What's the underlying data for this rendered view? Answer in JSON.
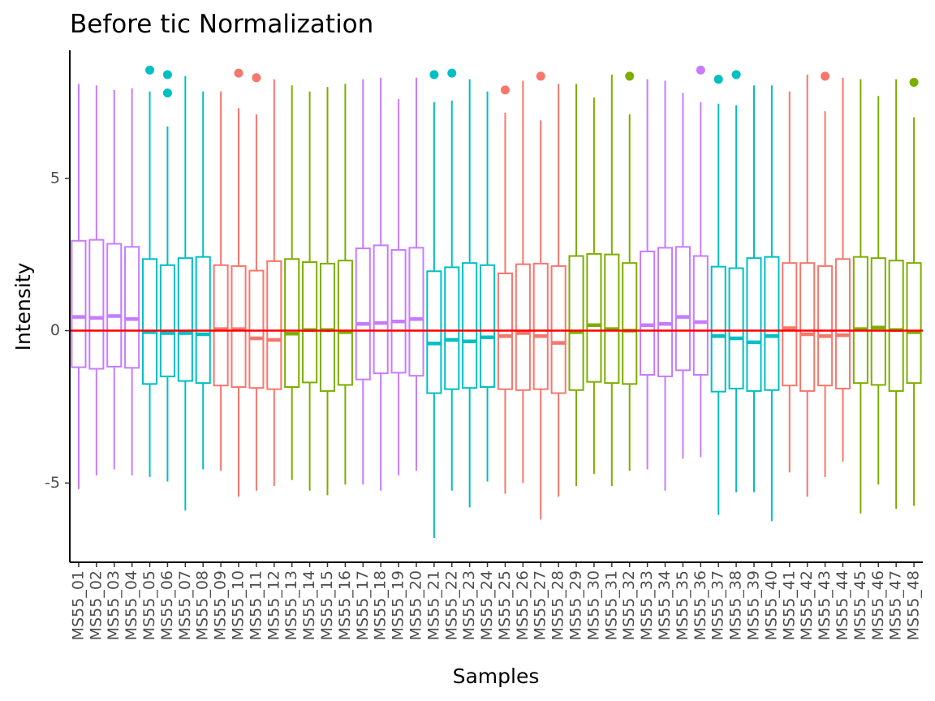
{
  "chart_data": {
    "type": "box",
    "title": "Before tic Normalization",
    "xlabel": "Samples",
    "ylabel": "Intensity",
    "ylim": [
      -7.6,
      9.2
    ],
    "yticks": [
      -5,
      0,
      5
    ],
    "reference_line": {
      "y": 0,
      "color": "#ff0000"
    },
    "grid": false,
    "legend": "none",
    "group_colors": {
      "purple": "#c77cff",
      "teal": "#00bfc4",
      "red": "#f8766d",
      "green": "#7cae00"
    },
    "samples": [
      {
        "name": "MS55_01",
        "group": "purple",
        "min": -5.2,
        "q1": -1.2,
        "median": 0.45,
        "q3": 2.95,
        "max": 8.1,
        "outliers": []
      },
      {
        "name": "MS55_02",
        "group": "purple",
        "min": -4.75,
        "q1": -1.25,
        "median": 0.42,
        "q3": 2.98,
        "max": 8.05,
        "outliers": []
      },
      {
        "name": "MS55_03",
        "group": "purple",
        "min": -4.55,
        "q1": -1.18,
        "median": 0.48,
        "q3": 2.85,
        "max": 7.9,
        "outliers": []
      },
      {
        "name": "MS55_04",
        "group": "purple",
        "min": -4.75,
        "q1": -1.22,
        "median": 0.38,
        "q3": 2.75,
        "max": 7.95,
        "outliers": []
      },
      {
        "name": "MS55_05",
        "group": "teal",
        "min": -4.8,
        "q1": -1.75,
        "median": -0.05,
        "q3": 2.35,
        "max": 7.85,
        "outliers": [
          8.55
        ]
      },
      {
        "name": "MS55_06",
        "group": "teal",
        "min": -4.95,
        "q1": -1.5,
        "median": -0.08,
        "q3": 2.15,
        "max": 6.7,
        "outliers": [
          8.4,
          7.8
        ]
      },
      {
        "name": "MS55_07",
        "group": "teal",
        "min": -5.9,
        "q1": -1.65,
        "median": -0.08,
        "q3": 2.38,
        "max": 8.35,
        "outliers": []
      },
      {
        "name": "MS55_08",
        "group": "teal",
        "min": -4.55,
        "q1": -1.72,
        "median": -0.12,
        "q3": 2.42,
        "max": 7.85,
        "outliers": []
      },
      {
        "name": "MS55_09",
        "group": "red",
        "min": -4.6,
        "q1": -1.8,
        "median": 0.05,
        "q3": 2.15,
        "max": 7.85,
        "outliers": []
      },
      {
        "name": "MS55_10",
        "group": "red",
        "min": -5.45,
        "q1": -1.85,
        "median": 0.05,
        "q3": 2.12,
        "max": 7.3,
        "outliers": [
          8.45
        ]
      },
      {
        "name": "MS55_11",
        "group": "red",
        "min": -5.25,
        "q1": -1.88,
        "median": -0.25,
        "q3": 1.97,
        "max": 7.1,
        "outliers": [
          8.3
        ]
      },
      {
        "name": "MS55_12",
        "group": "red",
        "min": -5.1,
        "q1": -1.92,
        "median": -0.3,
        "q3": 2.28,
        "max": 8.25,
        "outliers": []
      },
      {
        "name": "MS55_13",
        "group": "green",
        "min": -4.9,
        "q1": -1.85,
        "median": -0.1,
        "q3": 2.35,
        "max": 8.05,
        "outliers": []
      },
      {
        "name": "MS55_14",
        "group": "green",
        "min": -5.25,
        "q1": -1.7,
        "median": 0.02,
        "q3": 2.25,
        "max": 7.85,
        "outliers": []
      },
      {
        "name": "MS55_15",
        "group": "green",
        "min": -5.4,
        "q1": -1.98,
        "median": 0.02,
        "q3": 2.2,
        "max": 8.0,
        "outliers": []
      },
      {
        "name": "MS55_16",
        "group": "green",
        "min": -5.05,
        "q1": -1.78,
        "median": -0.05,
        "q3": 2.3,
        "max": 8.1,
        "outliers": []
      },
      {
        "name": "MS55_17",
        "group": "purple",
        "min": -5.05,
        "q1": -1.6,
        "median": 0.22,
        "q3": 2.7,
        "max": 8.25,
        "outliers": []
      },
      {
        "name": "MS55_18",
        "group": "purple",
        "min": -5.25,
        "q1": -1.4,
        "median": 0.25,
        "q3": 2.8,
        "max": 8.3,
        "outliers": []
      },
      {
        "name": "MS55_19",
        "group": "purple",
        "min": -4.75,
        "q1": -1.38,
        "median": 0.3,
        "q3": 2.65,
        "max": 7.6,
        "outliers": []
      },
      {
        "name": "MS55_20",
        "group": "purple",
        "min": -4.6,
        "q1": -1.48,
        "median": 0.38,
        "q3": 2.72,
        "max": 8.3,
        "outliers": []
      },
      {
        "name": "MS55_21",
        "group": "teal",
        "min": -6.8,
        "q1": -2.05,
        "median": -0.42,
        "q3": 1.95,
        "max": 7.5,
        "outliers": [
          8.4
        ]
      },
      {
        "name": "MS55_22",
        "group": "teal",
        "min": -5.25,
        "q1": -1.92,
        "median": -0.3,
        "q3": 2.08,
        "max": 7.55,
        "outliers": [
          8.45
        ]
      },
      {
        "name": "MS55_23",
        "group": "teal",
        "min": -5.8,
        "q1": -1.88,
        "median": -0.35,
        "q3": 2.22,
        "max": 8.25,
        "outliers": []
      },
      {
        "name": "MS55_24",
        "group": "teal",
        "min": -4.95,
        "q1": -1.85,
        "median": -0.22,
        "q3": 2.15,
        "max": 7.85,
        "outliers": []
      },
      {
        "name": "MS55_25",
        "group": "red",
        "min": -5.35,
        "q1": -1.92,
        "median": -0.18,
        "q3": 1.88,
        "max": 7.15,
        "outliers": [
          7.9
        ]
      },
      {
        "name": "MS55_26",
        "group": "red",
        "min": -5.0,
        "q1": -1.95,
        "median": -0.08,
        "q3": 2.18,
        "max": 8.2,
        "outliers": []
      },
      {
        "name": "MS55_27",
        "group": "red",
        "min": -6.2,
        "q1": -1.92,
        "median": -0.18,
        "q3": 2.2,
        "max": 6.9,
        "outliers": [
          8.35
        ]
      },
      {
        "name": "MS55_28",
        "group": "red",
        "min": -5.45,
        "q1": -2.05,
        "median": -0.4,
        "q3": 2.12,
        "max": 8.1,
        "outliers": []
      },
      {
        "name": "MS55_29",
        "group": "green",
        "min": -5.1,
        "q1": -1.95,
        "median": -0.05,
        "q3": 2.45,
        "max": 8.1,
        "outliers": []
      },
      {
        "name": "MS55_30",
        "group": "green",
        "min": -4.7,
        "q1": -1.68,
        "median": 0.18,
        "q3": 2.52,
        "max": 7.65,
        "outliers": []
      },
      {
        "name": "MS55_31",
        "group": "green",
        "min": -5.1,
        "q1": -1.72,
        "median": 0.05,
        "q3": 2.5,
        "max": 8.4,
        "outliers": []
      },
      {
        "name": "MS55_32",
        "group": "green",
        "min": -4.6,
        "q1": -1.75,
        "median": 0.0,
        "q3": 2.22,
        "max": 7.1,
        "outliers": [
          8.35
        ]
      },
      {
        "name": "MS55_33",
        "group": "purple",
        "min": -4.55,
        "q1": -1.45,
        "median": 0.18,
        "q3": 2.6,
        "max": 8.25,
        "outliers": []
      },
      {
        "name": "MS55_34",
        "group": "purple",
        "min": -5.25,
        "q1": -1.5,
        "median": 0.22,
        "q3": 2.72,
        "max": 8.2,
        "outliers": []
      },
      {
        "name": "MS55_35",
        "group": "purple",
        "min": -4.2,
        "q1": -1.3,
        "median": 0.45,
        "q3": 2.75,
        "max": 7.8,
        "outliers": []
      },
      {
        "name": "MS55_36",
        "group": "purple",
        "min": -4.15,
        "q1": -1.45,
        "median": 0.28,
        "q3": 2.45,
        "max": 7.5,
        "outliers": [
          8.55
        ]
      },
      {
        "name": "MS55_37",
        "group": "teal",
        "min": -6.05,
        "q1": -2.0,
        "median": -0.18,
        "q3": 2.1,
        "max": 7.45,
        "outliers": [
          8.25
        ]
      },
      {
        "name": "MS55_38",
        "group": "teal",
        "min": -5.3,
        "q1": -1.9,
        "median": -0.25,
        "q3": 2.05,
        "max": 7.4,
        "outliers": [
          8.4
        ]
      },
      {
        "name": "MS55_39",
        "group": "teal",
        "min": -5.3,
        "q1": -1.98,
        "median": -0.38,
        "q3": 2.38,
        "max": 8.05,
        "outliers": []
      },
      {
        "name": "MS55_40",
        "group": "teal",
        "min": -6.25,
        "q1": -1.95,
        "median": -0.18,
        "q3": 2.42,
        "max": 8.05,
        "outliers": []
      },
      {
        "name": "MS55_41",
        "group": "red",
        "min": -4.65,
        "q1": -1.8,
        "median": 0.08,
        "q3": 2.22,
        "max": 7.85,
        "outliers": []
      },
      {
        "name": "MS55_42",
        "group": "red",
        "min": -5.45,
        "q1": -1.98,
        "median": -0.12,
        "q3": 2.22,
        "max": 8.4,
        "outliers": []
      },
      {
        "name": "MS55_43",
        "group": "red",
        "min": -4.8,
        "q1": -1.8,
        "median": -0.18,
        "q3": 2.12,
        "max": 7.2,
        "outliers": [
          8.35
        ]
      },
      {
        "name": "MS55_44",
        "group": "red",
        "min": -4.3,
        "q1": -1.9,
        "median": -0.15,
        "q3": 2.35,
        "max": 8.3,
        "outliers": []
      },
      {
        "name": "MS55_45",
        "group": "green",
        "min": -6.0,
        "q1": -1.72,
        "median": 0.05,
        "q3": 2.42,
        "max": 8.25,
        "outliers": []
      },
      {
        "name": "MS55_46",
        "group": "green",
        "min": -5.05,
        "q1": -1.78,
        "median": 0.1,
        "q3": 2.38,
        "max": 7.7,
        "outliers": []
      },
      {
        "name": "MS55_47",
        "group": "green",
        "min": -5.85,
        "q1": -1.98,
        "median": 0.02,
        "q3": 2.3,
        "max": 8.25,
        "outliers": []
      },
      {
        "name": "MS55_48",
        "group": "green",
        "min": -5.75,
        "q1": -1.72,
        "median": -0.05,
        "q3": 2.22,
        "max": 7.0,
        "outliers": [
          8.15
        ]
      }
    ]
  }
}
